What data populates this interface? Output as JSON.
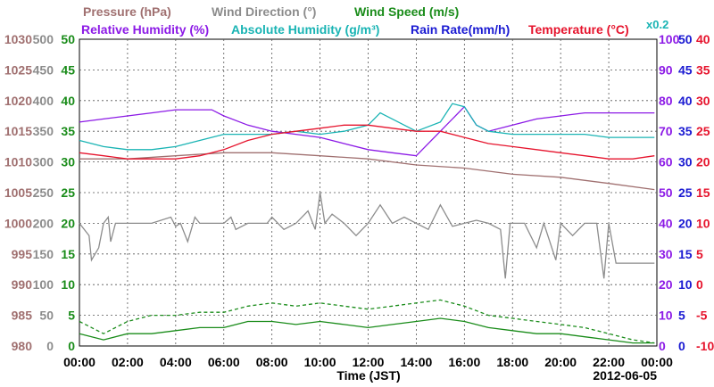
{
  "chart_data": {
    "type": "line",
    "date_label": "2012-06-05",
    "xlabel": "Time (JST)",
    "x_ticks": [
      "00:00",
      "02:00",
      "04:00",
      "06:00",
      "08:00",
      "10:00",
      "12:00",
      "14:00",
      "16:00",
      "18:00",
      "20:00",
      "22:00",
      "00:00"
    ],
    "x_range_hours": [
      0,
      24
    ],
    "grid": true,
    "legend_row1": [
      {
        "name": "Pressure (hPa)",
        "color": "#a07070"
      },
      {
        "name": "Wind Direction (°)",
        "color": "#8c8c8c"
      },
      {
        "name": "Wind Speed (m/s)",
        "color": "#1a8c1a"
      }
    ],
    "legend_row2": [
      {
        "name": "Relative Humidity (%)",
        "color": "#8c1ae6"
      },
      {
        "name": "Absolute Humidity (g/m³)",
        "color": "#1ab4b4"
      },
      {
        "name": "Rain Rate(mm/h)",
        "color": "#1a1ad2"
      },
      {
        "name": "Temperature (°C)",
        "color": "#e6142d"
      }
    ],
    "abs_humidity_scale_note": "x0.2",
    "axes": {
      "pressure": {
        "label": "Pressure (hPa)",
        "range": [
          980,
          1030
        ],
        "ticks": [
          "1030",
          "1025",
          "1020",
          "1015",
          "1010",
          "1005",
          "1000",
          "995",
          "990",
          "985",
          "980"
        ],
        "color": "#a07070"
      },
      "wind_direction": {
        "label": "Wind Direction (°)",
        "range": [
          0,
          500
        ],
        "ticks": [
          "500",
          "450",
          "400",
          "350",
          "300",
          "250",
          "200",
          "150",
          "100",
          "50",
          "0"
        ],
        "color": "#8c8c8c"
      },
      "wind_speed": {
        "label": "Wind Speed (m/s)",
        "range": [
          0,
          50
        ],
        "ticks": [
          "50",
          "45",
          "40",
          "35",
          "30",
          "25",
          "20",
          "15",
          "10",
          "5",
          "0"
        ],
        "color": "#1a8c1a"
      },
      "relative_humidity": {
        "label": "Relative Humidity (%)",
        "range": [
          0,
          100
        ],
        "ticks": [
          "100",
          "90",
          "80",
          "70",
          "60",
          "50",
          "40",
          "30",
          "20",
          "10",
          "0"
        ],
        "color": "#8c1ae6"
      },
      "rain_rate": {
        "label": "Rain Rate(mm/h)",
        "range": [
          0,
          50
        ],
        "ticks": [
          "50",
          "45",
          "40",
          "35",
          "30",
          "25",
          "20",
          "15",
          "10",
          "5",
          "0"
        ],
        "color": "#1a1ad2"
      },
      "temperature": {
        "label": "Temperature (°C)",
        "range": [
          -10,
          40
        ],
        "ticks": [
          "40",
          "35",
          "30",
          "25",
          "20",
          "15",
          "10",
          "5",
          "0",
          "-5",
          "-10"
        ],
        "color": "#e6142d"
      }
    },
    "series": [
      {
        "name": "Pressure (hPa)",
        "axis": "pressure",
        "color": "#a07070",
        "points": [
          [
            0,
            1010.5
          ],
          [
            2,
            1010.5
          ],
          [
            4,
            1011.0
          ],
          [
            6,
            1011.5
          ],
          [
            8,
            1011.5
          ],
          [
            10,
            1011.0
          ],
          [
            12,
            1010.5
          ],
          [
            14,
            1009.5
          ],
          [
            16,
            1009.0
          ],
          [
            18,
            1008.0
          ],
          [
            20,
            1007.5
          ],
          [
            22,
            1006.5
          ],
          [
            23.9,
            1005.5
          ]
        ]
      },
      {
        "name": "Relative Humidity (%)",
        "axis": "relative_humidity",
        "color": "#8c1ae6",
        "points": [
          [
            0,
            73
          ],
          [
            1,
            74
          ],
          [
            2,
            75
          ],
          [
            3,
            76
          ],
          [
            4,
            77
          ],
          [
            5.5,
            77
          ],
          [
            6,
            75
          ],
          [
            7,
            72
          ],
          [
            8,
            70
          ],
          [
            9,
            69
          ],
          [
            10,
            68
          ],
          [
            11,
            66
          ],
          [
            12,
            64
          ],
          [
            13,
            63
          ],
          [
            14,
            62
          ],
          [
            15,
            70
          ],
          [
            16,
            78
          ],
          [
            16.5,
            72
          ],
          [
            17,
            70
          ],
          [
            18,
            72
          ],
          [
            19,
            74
          ],
          [
            20,
            75
          ],
          [
            21,
            76
          ],
          [
            22,
            76
          ],
          [
            23,
            76
          ],
          [
            23.9,
            76
          ]
        ]
      },
      {
        "name": "Absolute Humidity (g/m³)",
        "axis": "relative_humidity",
        "color": "#1ab4b4",
        "points": [
          [
            0,
            67
          ],
          [
            1,
            65
          ],
          [
            2,
            64
          ],
          [
            3,
            64
          ],
          [
            4,
            65
          ],
          [
            5,
            67
          ],
          [
            6,
            69
          ],
          [
            7,
            69
          ],
          [
            8,
            69
          ],
          [
            9,
            70
          ],
          [
            10,
            69
          ],
          [
            11,
            70
          ],
          [
            12,
            72
          ],
          [
            12.5,
            76
          ],
          [
            13,
            74
          ],
          [
            14,
            70
          ],
          [
            15,
            73
          ],
          [
            15.5,
            79
          ],
          [
            16,
            78
          ],
          [
            16.5,
            72
          ],
          [
            17,
            70
          ],
          [
            18,
            69
          ],
          [
            19,
            69
          ],
          [
            20,
            69
          ],
          [
            21,
            69
          ],
          [
            22,
            68
          ],
          [
            23,
            68
          ],
          [
            23.9,
            68
          ]
        ]
      },
      {
        "name": "Temperature (°C)",
        "axis": "temperature",
        "color": "#e6142d",
        "points": [
          [
            0,
            21.5
          ],
          [
            1,
            21.0
          ],
          [
            2,
            20.5
          ],
          [
            3,
            20.5
          ],
          [
            4,
            20.5
          ],
          [
            5,
            21.0
          ],
          [
            6,
            22.0
          ],
          [
            7,
            23.5
          ],
          [
            8,
            24.5
          ],
          [
            9,
            25.0
          ],
          [
            10,
            25.5
          ],
          [
            11,
            26.0
          ],
          [
            12,
            26.0
          ],
          [
            13,
            25.5
          ],
          [
            14,
            25.0
          ],
          [
            15,
            25.0
          ],
          [
            16,
            24.0
          ],
          [
            17,
            23.0
          ],
          [
            18,
            22.5
          ],
          [
            19,
            22.0
          ],
          [
            20,
            21.5
          ],
          [
            21,
            21.0
          ],
          [
            22,
            20.5
          ],
          [
            23,
            20.5
          ],
          [
            23.9,
            21.0
          ]
        ]
      },
      {
        "name": "Wind Direction (°)",
        "axis": "wind_direction",
        "color": "#8c8c8c",
        "points": [
          [
            0,
            200
          ],
          [
            0.4,
            180
          ],
          [
            0.5,
            140
          ],
          [
            0.8,
            160
          ],
          [
            1.0,
            200
          ],
          [
            1.2,
            210
          ],
          [
            1.3,
            170
          ],
          [
            1.5,
            200
          ],
          [
            2,
            200
          ],
          [
            3,
            200
          ],
          [
            3.8,
            210
          ],
          [
            4.0,
            195
          ],
          [
            4.2,
            200
          ],
          [
            4.5,
            170
          ],
          [
            4.8,
            210
          ],
          [
            5,
            200
          ],
          [
            6,
            200
          ],
          [
            6.3,
            210
          ],
          [
            6.5,
            190
          ],
          [
            7,
            200
          ],
          [
            7.8,
            200
          ],
          [
            8,
            210
          ],
          [
            8.5,
            190
          ],
          [
            9,
            200
          ],
          [
            9.5,
            220
          ],
          [
            9.8,
            190
          ],
          [
            10,
            250
          ],
          [
            10.2,
            200
          ],
          [
            10.5,
            215
          ],
          [
            11,
            200
          ],
          [
            11.5,
            180
          ],
          [
            12,
            200
          ],
          [
            12.5,
            230
          ],
          [
            13,
            200
          ],
          [
            13.5,
            210
          ],
          [
            14,
            200
          ],
          [
            14.5,
            190
          ],
          [
            15,
            230
          ],
          [
            15.5,
            195
          ],
          [
            16,
            200
          ],
          [
            16.5,
            205
          ],
          [
            17,
            200
          ],
          [
            17.5,
            190
          ],
          [
            17.7,
            110
          ],
          [
            17.9,
            200
          ],
          [
            18.5,
            200
          ],
          [
            19,
            160
          ],
          [
            19.3,
            200
          ],
          [
            19.8,
            140
          ],
          [
            20.0,
            200
          ],
          [
            20.5,
            180
          ],
          [
            21,
            200
          ],
          [
            21.5,
            200
          ],
          [
            21.8,
            110
          ],
          [
            22,
            200
          ],
          [
            22.3,
            135
          ],
          [
            23,
            135
          ],
          [
            23.9,
            135
          ]
        ]
      },
      {
        "name": "Wind Speed (m/s)",
        "axis": "wind_speed",
        "color": "#1a8c1a",
        "points": [
          [
            0,
            2
          ],
          [
            1,
            1
          ],
          [
            2,
            2
          ],
          [
            3,
            2
          ],
          [
            4,
            2.5
          ],
          [
            5,
            3
          ],
          [
            6,
            3
          ],
          [
            7,
            4
          ],
          [
            8,
            4
          ],
          [
            9,
            3.5
          ],
          [
            10,
            4
          ],
          [
            11,
            3.5
          ],
          [
            12,
            3
          ],
          [
            13,
            3.5
          ],
          [
            14,
            4
          ],
          [
            15,
            4.5
          ],
          [
            16,
            4
          ],
          [
            17,
            3
          ],
          [
            18,
            2.5
          ],
          [
            19,
            2
          ],
          [
            20,
            2
          ],
          [
            21,
            1.5
          ],
          [
            22,
            1
          ],
          [
            23,
            0.5
          ],
          [
            23.9,
            0.5
          ]
        ]
      },
      {
        "name": "Wind Speed gust (m/s)",
        "axis": "wind_speed",
        "color": "#1a8c1a",
        "dashed": true,
        "points": [
          [
            0,
            4
          ],
          [
            1,
            2
          ],
          [
            2,
            4
          ],
          [
            3,
            5
          ],
          [
            4,
            5
          ],
          [
            5,
            5.5
          ],
          [
            6,
            5.5
          ],
          [
            7,
            6.5
          ],
          [
            8,
            7
          ],
          [
            9,
            6.5
          ],
          [
            10,
            7
          ],
          [
            11,
            6.5
          ],
          [
            12,
            6
          ],
          [
            13,
            6.5
          ],
          [
            14,
            7
          ],
          [
            15,
            7.5
          ],
          [
            16,
            6.5
          ],
          [
            17,
            5
          ],
          [
            18,
            4.5
          ],
          [
            19,
            4
          ],
          [
            20,
            3.5
          ],
          [
            21,
            3
          ],
          [
            22,
            2
          ],
          [
            23,
            1
          ],
          [
            23.9,
            0.5
          ]
        ]
      }
    ]
  }
}
